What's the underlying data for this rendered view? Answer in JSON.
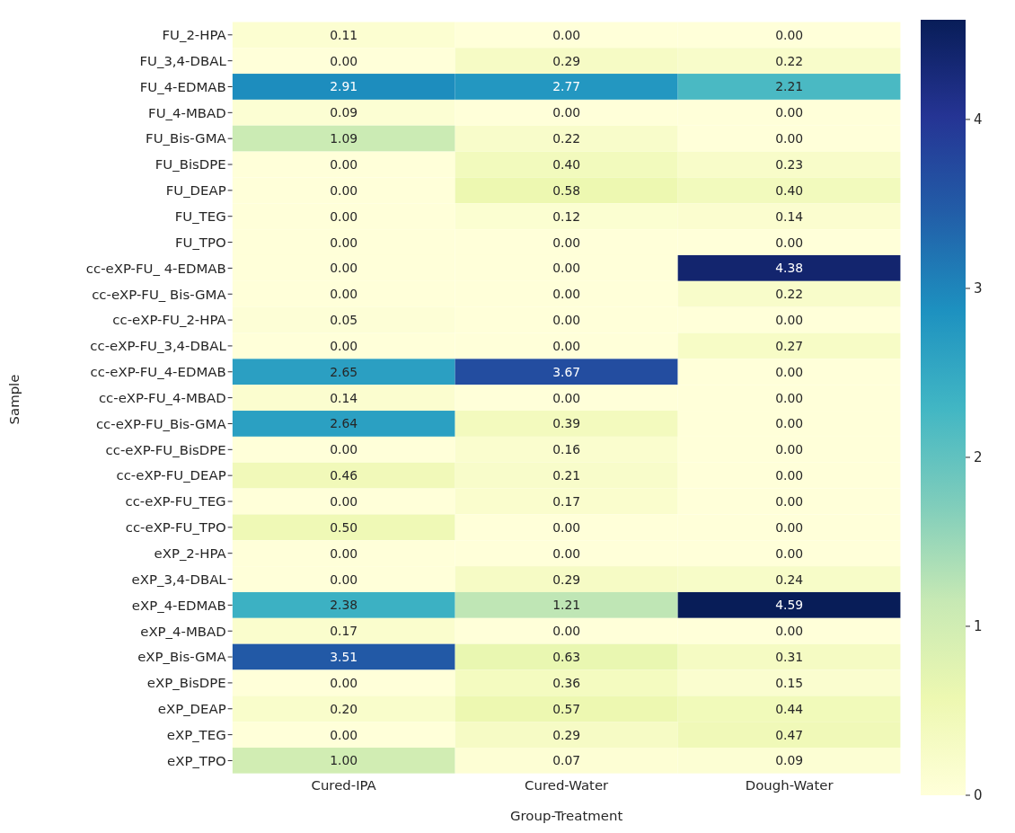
{
  "chart_data": {
    "type": "heatmap",
    "xlabel": "Group-Treatment",
    "ylabel": "Sample",
    "categories": [
      "Cured-IPA",
      "Cured-Water",
      "Dough-Water"
    ],
    "y_categories": [
      "FU_2-HPA",
      "FU_3,4-DBAL",
      "FU_4-EDMAB",
      "FU_4-MBAD",
      "FU_Bis-GMA",
      "FU_BisDPE",
      "FU_DEAP",
      "FU_TEG",
      "FU_TPO",
      "cc-eXP-FU_ 4-EDMAB",
      "cc-eXP-FU_ Bis-GMA",
      "cc-eXP-FU_2-HPA",
      "cc-eXP-FU_3,4-DBAL",
      "cc-eXP-FU_4-EDMAB",
      "cc-eXP-FU_4-MBAD",
      "cc-eXP-FU_Bis-GMA",
      "cc-eXP-FU_BisDPE",
      "cc-eXP-FU_DEAP",
      "cc-eXP-FU_TEG",
      "cc-eXP-FU_TPO",
      "eXP_2-HPA",
      "eXP_3,4-DBAL",
      "eXP_4-EDMAB",
      "eXP_4-MBAD",
      "eXP_Bis-GMA",
      "eXP_BisDPE",
      "eXP_DEAP",
      "eXP_TEG",
      "eXP_TPO"
    ],
    "cells": [
      [
        0.11,
        0,
        0
      ],
      [
        0,
        0.29,
        0.22
      ],
      [
        2.91,
        2.77,
        2.21
      ],
      [
        0.09,
        0,
        0
      ],
      [
        1.09,
        0.22,
        0
      ],
      [
        0,
        0.4,
        0.23
      ],
      [
        0,
        0.58,
        0.4
      ],
      [
        0,
        0.12,
        0.14
      ],
      [
        0,
        0,
        0
      ],
      [
        0,
        0,
        4.38
      ],
      [
        0,
        0,
        0.22
      ],
      [
        0.05,
        0,
        0
      ],
      [
        0,
        0,
        0.27
      ],
      [
        2.65,
        3.67,
        0
      ],
      [
        0.14,
        0,
        0
      ],
      [
        2.64,
        0.39,
        0
      ],
      [
        0,
        0.16,
        0
      ],
      [
        0.46,
        0.21,
        0
      ],
      [
        0,
        0.17,
        0
      ],
      [
        0.5,
        0,
        0
      ],
      [
        0,
        0,
        0
      ],
      [
        0,
        0.29,
        0.24
      ],
      [
        2.38,
        1.21,
        4.59
      ],
      [
        0.17,
        0,
        0
      ],
      [
        3.51,
        0.63,
        0.31
      ],
      [
        0,
        0.36,
        0.15
      ],
      [
        0.2,
        0.57,
        0.44
      ],
      [
        0,
        0.29,
        0.47
      ],
      [
        1,
        0.07,
        0.09
      ]
    ],
    "cell_labels": [
      [
        "0.11",
        "0.00",
        "0.00"
      ],
      [
        "0.00",
        "0.29",
        "0.22"
      ],
      [
        "2.91",
        "2.77",
        "2.21"
      ],
      [
        "0.09",
        "0.00",
        "0.00"
      ],
      [
        "1.09",
        "0.22",
        "0.00"
      ],
      [
        "0.00",
        "0.40",
        "0.23"
      ],
      [
        "0.00",
        "0.58",
        "0.40"
      ],
      [
        "0.00",
        "0.12",
        "0.14"
      ],
      [
        "0.00",
        "0.00",
        "0.00"
      ],
      [
        "0.00",
        "0.00",
        "4.38"
      ],
      [
        "0.00",
        "0.00",
        "0.22"
      ],
      [
        "0.05",
        "0.00",
        "0.00"
      ],
      [
        "0.00",
        "0.00",
        "0.27"
      ],
      [
        "2.65",
        "3.67",
        "0.00"
      ],
      [
        "0.14",
        "0.00",
        "0.00"
      ],
      [
        "2.64",
        "0.39",
        "0.00"
      ],
      [
        "0.00",
        "0.16",
        "0.00"
      ],
      [
        "0.46",
        "0.21",
        "0.00"
      ],
      [
        "0.00",
        "0.17",
        "0.00"
      ],
      [
        "0.50",
        "0.00",
        "0.00"
      ],
      [
        "0.00",
        "0.00",
        "0.00"
      ],
      [
        "0.00",
        "0.29",
        "0.24"
      ],
      [
        "2.38",
        "1.21",
        "4.59"
      ],
      [
        "0.17",
        "0.00",
        "0.00"
      ],
      [
        "3.51",
        "0.63",
        "0.31"
      ],
      [
        "0.00",
        "0.36",
        "0.15"
      ],
      [
        "0.20",
        "0.57",
        "0.44"
      ],
      [
        "0.00",
        "0.29",
        "0.47"
      ],
      [
        "1.00",
        "0.07",
        "0.09"
      ]
    ],
    "clim": [
      0,
      4.59
    ],
    "cticks": [
      0,
      1,
      2,
      3,
      4
    ]
  }
}
